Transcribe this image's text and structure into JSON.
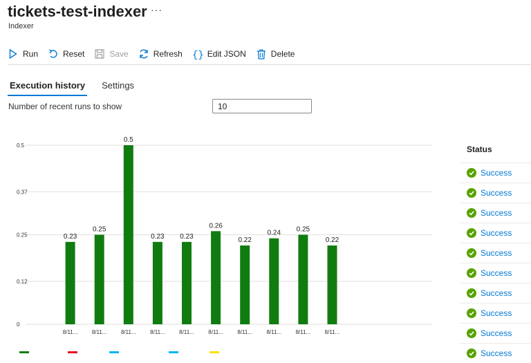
{
  "header": {
    "title": "tickets-test-indexer",
    "subtitle": "Indexer",
    "more": "···"
  },
  "toolbar": {
    "run": "Run",
    "reset": "Reset",
    "save": "Save",
    "refresh": "Refresh",
    "edit_json": "Edit JSON",
    "delete": "Delete"
  },
  "tabs": [
    {
      "label": "Execution history",
      "active": true
    },
    {
      "label": "Settings",
      "active": false
    }
  ],
  "runs": {
    "label": "Number of recent runs to show",
    "value": "10"
  },
  "chart_data": {
    "type": "bar",
    "categories": [
      "",
      "8/11...",
      "8/11...",
      "8/11...",
      "8/11...",
      "8/11...",
      "8/11...",
      "8/11...",
      "8/11...",
      "8/11...",
      "8/11..."
    ],
    "values": [
      null,
      0.23,
      0.25,
      0.5,
      0.23,
      0.23,
      0.26,
      0.22,
      0.24,
      0.25,
      0.22
    ],
    "value_labels": [
      "",
      "0.23",
      "0.25",
      "0.5",
      "0.23",
      "0.23",
      "0.26",
      "0.22",
      "0.24",
      "0.25",
      "0.22"
    ],
    "yticks": [
      0,
      0.12,
      0.25,
      0.37,
      0.5
    ],
    "ytick_labels": [
      "0",
      "0.12",
      "0.25",
      "0.37",
      "0.5"
    ],
    "ylim": [
      0,
      0.5
    ],
    "grid": true,
    "bar_color": "#107c10",
    "legend_colors": [
      "#107c10",
      "#e81123",
      "#00b7f0",
      "#00b7f0",
      "#fce100"
    ]
  },
  "status": {
    "header": "Status",
    "items": [
      "Success",
      "Success",
      "Success",
      "Success",
      "Success",
      "Success",
      "Success",
      "Success",
      "Success",
      "Success"
    ]
  },
  "colors": {
    "accent": "#0078d4",
    "success": "#57a300",
    "bar": "#107c10"
  }
}
